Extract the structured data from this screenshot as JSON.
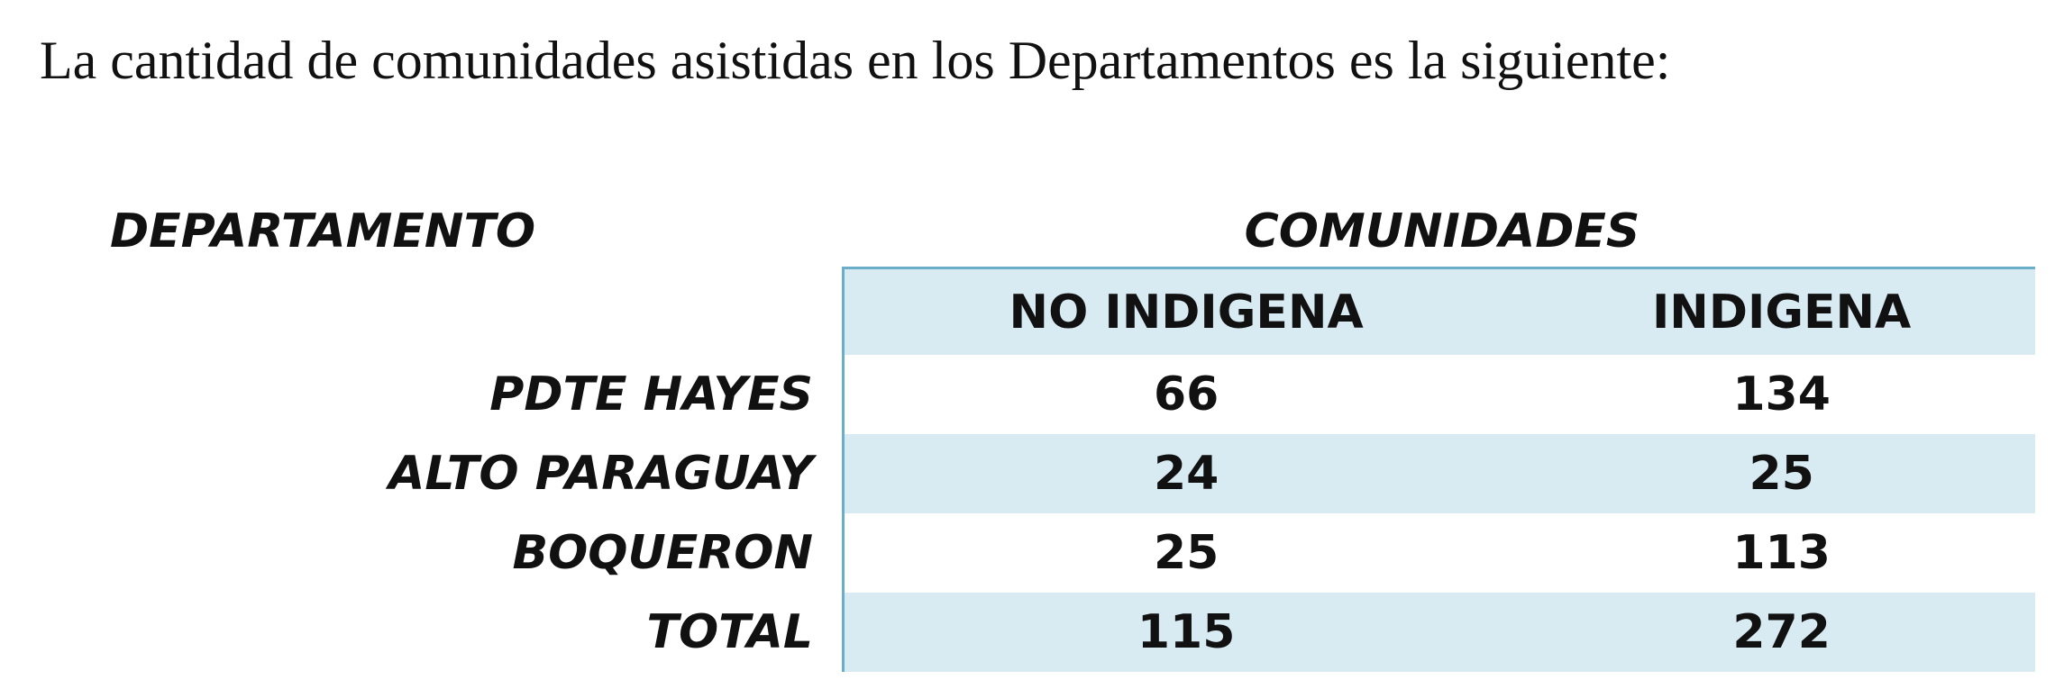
{
  "intro_text": "La cantidad de comunidades asistidas en los Departamentos es la siguiente:",
  "table": {
    "header_left": "DEPARTAMENTO",
    "header_group": "COMUNIDADES",
    "columns": [
      "NO INDIGENA",
      "INDIGENA"
    ],
    "rows": [
      {
        "departamento": "PDTE HAYES",
        "no_indigena": "66",
        "indigena": "134"
      },
      {
        "departamento": "ALTO PARAGUAY",
        "no_indigena": "24",
        "indigena": "25"
      },
      {
        "departamento": "BOQUERON",
        "no_indigena": "25",
        "indigena": "113"
      },
      {
        "departamento": "TOTAL",
        "no_indigena": "115",
        "indigena": "272"
      }
    ]
  },
  "colors": {
    "band": "#d8ebf3",
    "border": "#6aaec9"
  }
}
